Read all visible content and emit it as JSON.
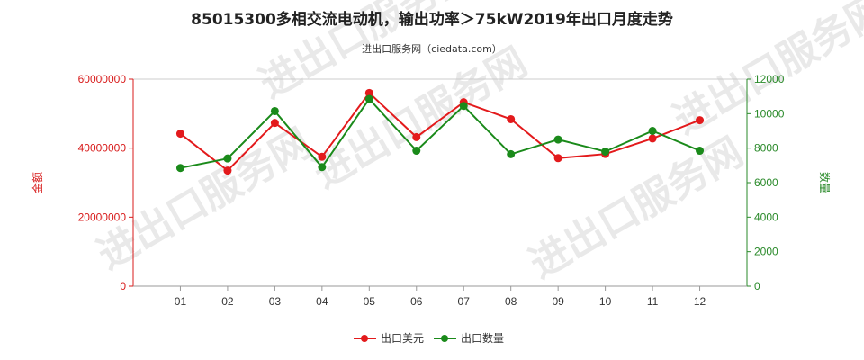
{
  "chart_data": {
    "type": "line",
    "title": "85015300多相交流电动机，输出功率＞75kW2019年出口月度走势",
    "subtitle": "进出口服务网（ciedata.com）",
    "categories": [
      "01",
      "02",
      "03",
      "04",
      "05",
      "06",
      "07",
      "08",
      "09",
      "10",
      "11",
      "12"
    ],
    "y_left": {
      "label": "金额",
      "ylim": [
        0,
        60000000
      ],
      "ticks": [
        "0",
        "20000000",
        "40000000",
        "60000000"
      ]
    },
    "y_right": {
      "label": "数量",
      "ylim": [
        0,
        12000
      ],
      "ticks": [
        "0",
        "2000",
        "4000",
        "6000",
        "8000",
        "10000",
        "12000"
      ]
    },
    "series": [
      {
        "name": "出口美元",
        "axis": "left",
        "color": "#e31a1c",
        "values": [
          44200000,
          33500000,
          47300000,
          37500000,
          56000000,
          43200000,
          53300000,
          48400000,
          37100000,
          38300000,
          42800000,
          48100000
        ]
      },
      {
        "name": "出口数量",
        "axis": "right",
        "color": "#1a8a1a",
        "values": [
          6850,
          7400,
          10150,
          6900,
          10850,
          7850,
          10450,
          7650,
          8500,
          7800,
          9000,
          7850
        ]
      }
    ],
    "grid": false,
    "legend": "bottom-center",
    "watermark": "进出口服务网"
  }
}
